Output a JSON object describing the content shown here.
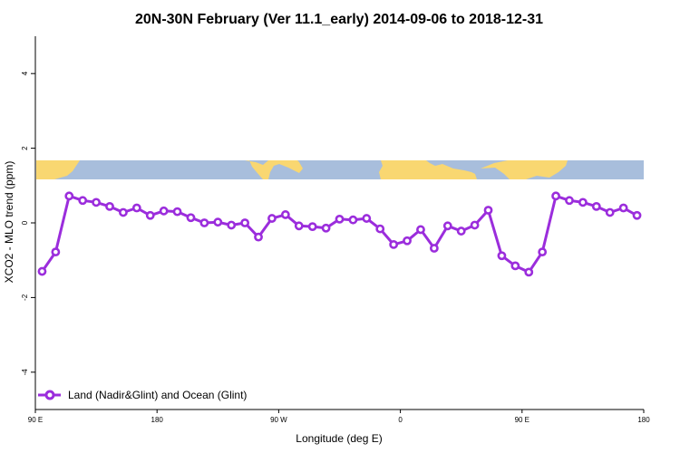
{
  "chart_data": {
    "type": "line",
    "title": "20N-30N February (Ver 11.1_early)   2014-09-06 to 2018-12-31",
    "xlabel": "Longitude (deg E)",
    "ylabel": "XCO2 - MLO trend (ppm)",
    "xlim": [
      90,
      540
    ],
    "ylim": [
      -5,
      5
    ],
    "grid": false,
    "legend_position": "bottom-left",
    "x_ticks": [
      {
        "value": 90,
        "label": "90 E"
      },
      {
        "value": 180,
        "label": "180"
      },
      {
        "value": 270,
        "label": "90 W"
      },
      {
        "value": 360,
        "label": "0"
      },
      {
        "value": 450,
        "label": "90 E"
      },
      {
        "value": 540,
        "label": "180"
      }
    ],
    "y_ticks": [
      {
        "value": -4,
        "label": "-4"
      },
      {
        "value": -2,
        "label": "-2"
      },
      {
        "value": 0,
        "label": "0"
      },
      {
        "value": 2,
        "label": "2"
      },
      {
        "value": 4,
        "label": "4"
      }
    ],
    "series": [
      {
        "name": "Land (Nadir&Glint) and Ocean (Glint)",
        "color": "#9b2ddc",
        "x": [
          95,
          105,
          115,
          125,
          135,
          145,
          155,
          165,
          175,
          185,
          195,
          205,
          215,
          225,
          235,
          245,
          255,
          265,
          275,
          285,
          295,
          305,
          315,
          325,
          335,
          345,
          355,
          365,
          375,
          385,
          395,
          405,
          415,
          425,
          435,
          445,
          455,
          465,
          475,
          485,
          495,
          505,
          515,
          525,
          535
        ],
        "y": [
          -1.3,
          -0.78,
          0.72,
          0.6,
          0.55,
          0.44,
          0.28,
          0.4,
          0.2,
          0.32,
          0.3,
          0.14,
          0.0,
          0.02,
          -0.06,
          0.0,
          -0.38,
          0.12,
          0.22,
          -0.08,
          -0.1,
          -0.14,
          0.1,
          0.08,
          0.12,
          -0.16,
          -0.58,
          -0.48,
          -0.18,
          -0.68,
          -0.08,
          -0.22,
          -0.06,
          0.34,
          -0.88,
          -1.15,
          -1.32,
          -0.78,
          0.72,
          0.6,
          0.55,
          0.44,
          0.28,
          0.4,
          0.2
        ]
      }
    ]
  },
  "colors": {
    "series": "#9b2ddc",
    "ocean": "#a8bedc",
    "land": "#f9d771"
  }
}
